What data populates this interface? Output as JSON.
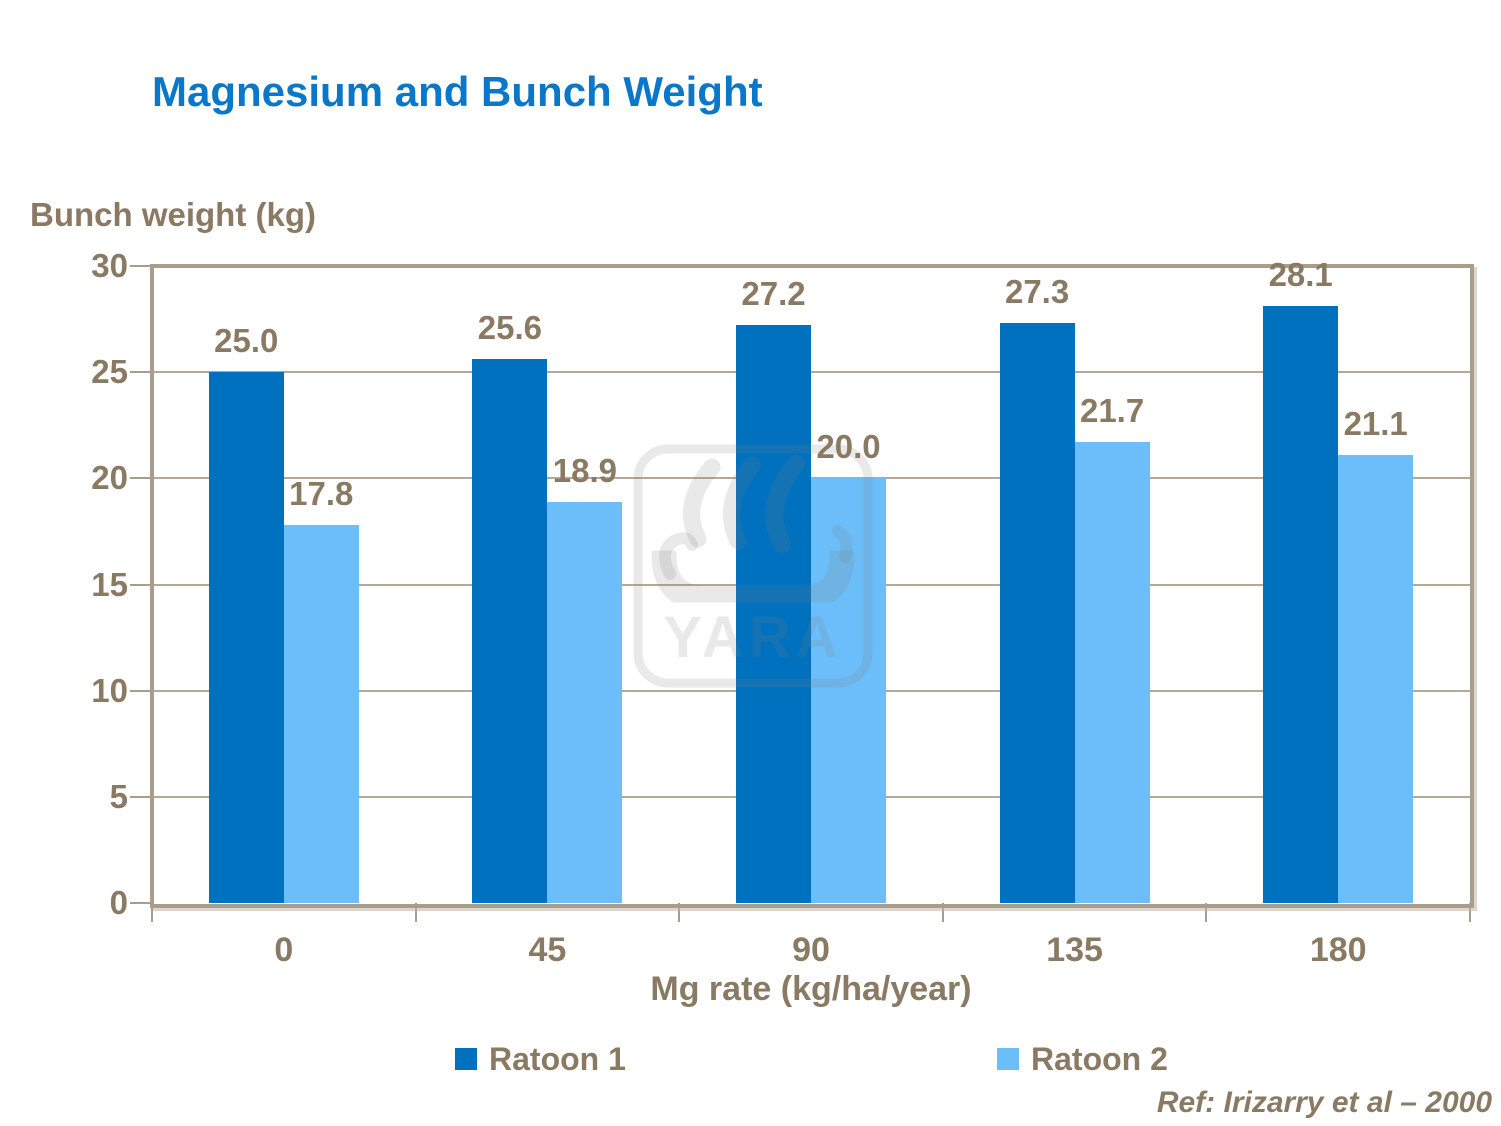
{
  "slide": {
    "title": "Magnesium and Bunch Weight",
    "reference": "Ref: Irizarry et al – 2000"
  },
  "chart_data": {
    "type": "bar",
    "title": "Magnesium and Bunch Weight",
    "ylabel": "Bunch weight (kg)",
    "xlabel": "Mg rate (kg/ha/year)",
    "categories": [
      "0",
      "45",
      "90",
      "135",
      "180"
    ],
    "series": [
      {
        "name": "Ratoon 1",
        "color": "#0071BE",
        "values": [
          25.0,
          25.6,
          27.2,
          27.3,
          28.1
        ]
      },
      {
        "name": "Ratoon 2",
        "color": "#6BBEF9",
        "values": [
          17.8,
          18.9,
          20.0,
          21.7,
          21.1
        ]
      }
    ],
    "ylim": [
      0,
      30
    ],
    "ytick_step": 5,
    "yticks": [
      0,
      5,
      10,
      15,
      20,
      25,
      30
    ],
    "grid": true,
    "value_labels": true,
    "value_label_decimals": 1,
    "legend_position": "bottom"
  },
  "watermark": {
    "text": "YARA",
    "icon": "viking-ship-icon"
  },
  "colors": {
    "title_text": "#0b77c8",
    "axis_text": "#8a7a63",
    "axis_line": "#ab9d8c",
    "gridline": "#b5a896",
    "watermark_gray": "rgba(125,125,125,0.17)"
  }
}
